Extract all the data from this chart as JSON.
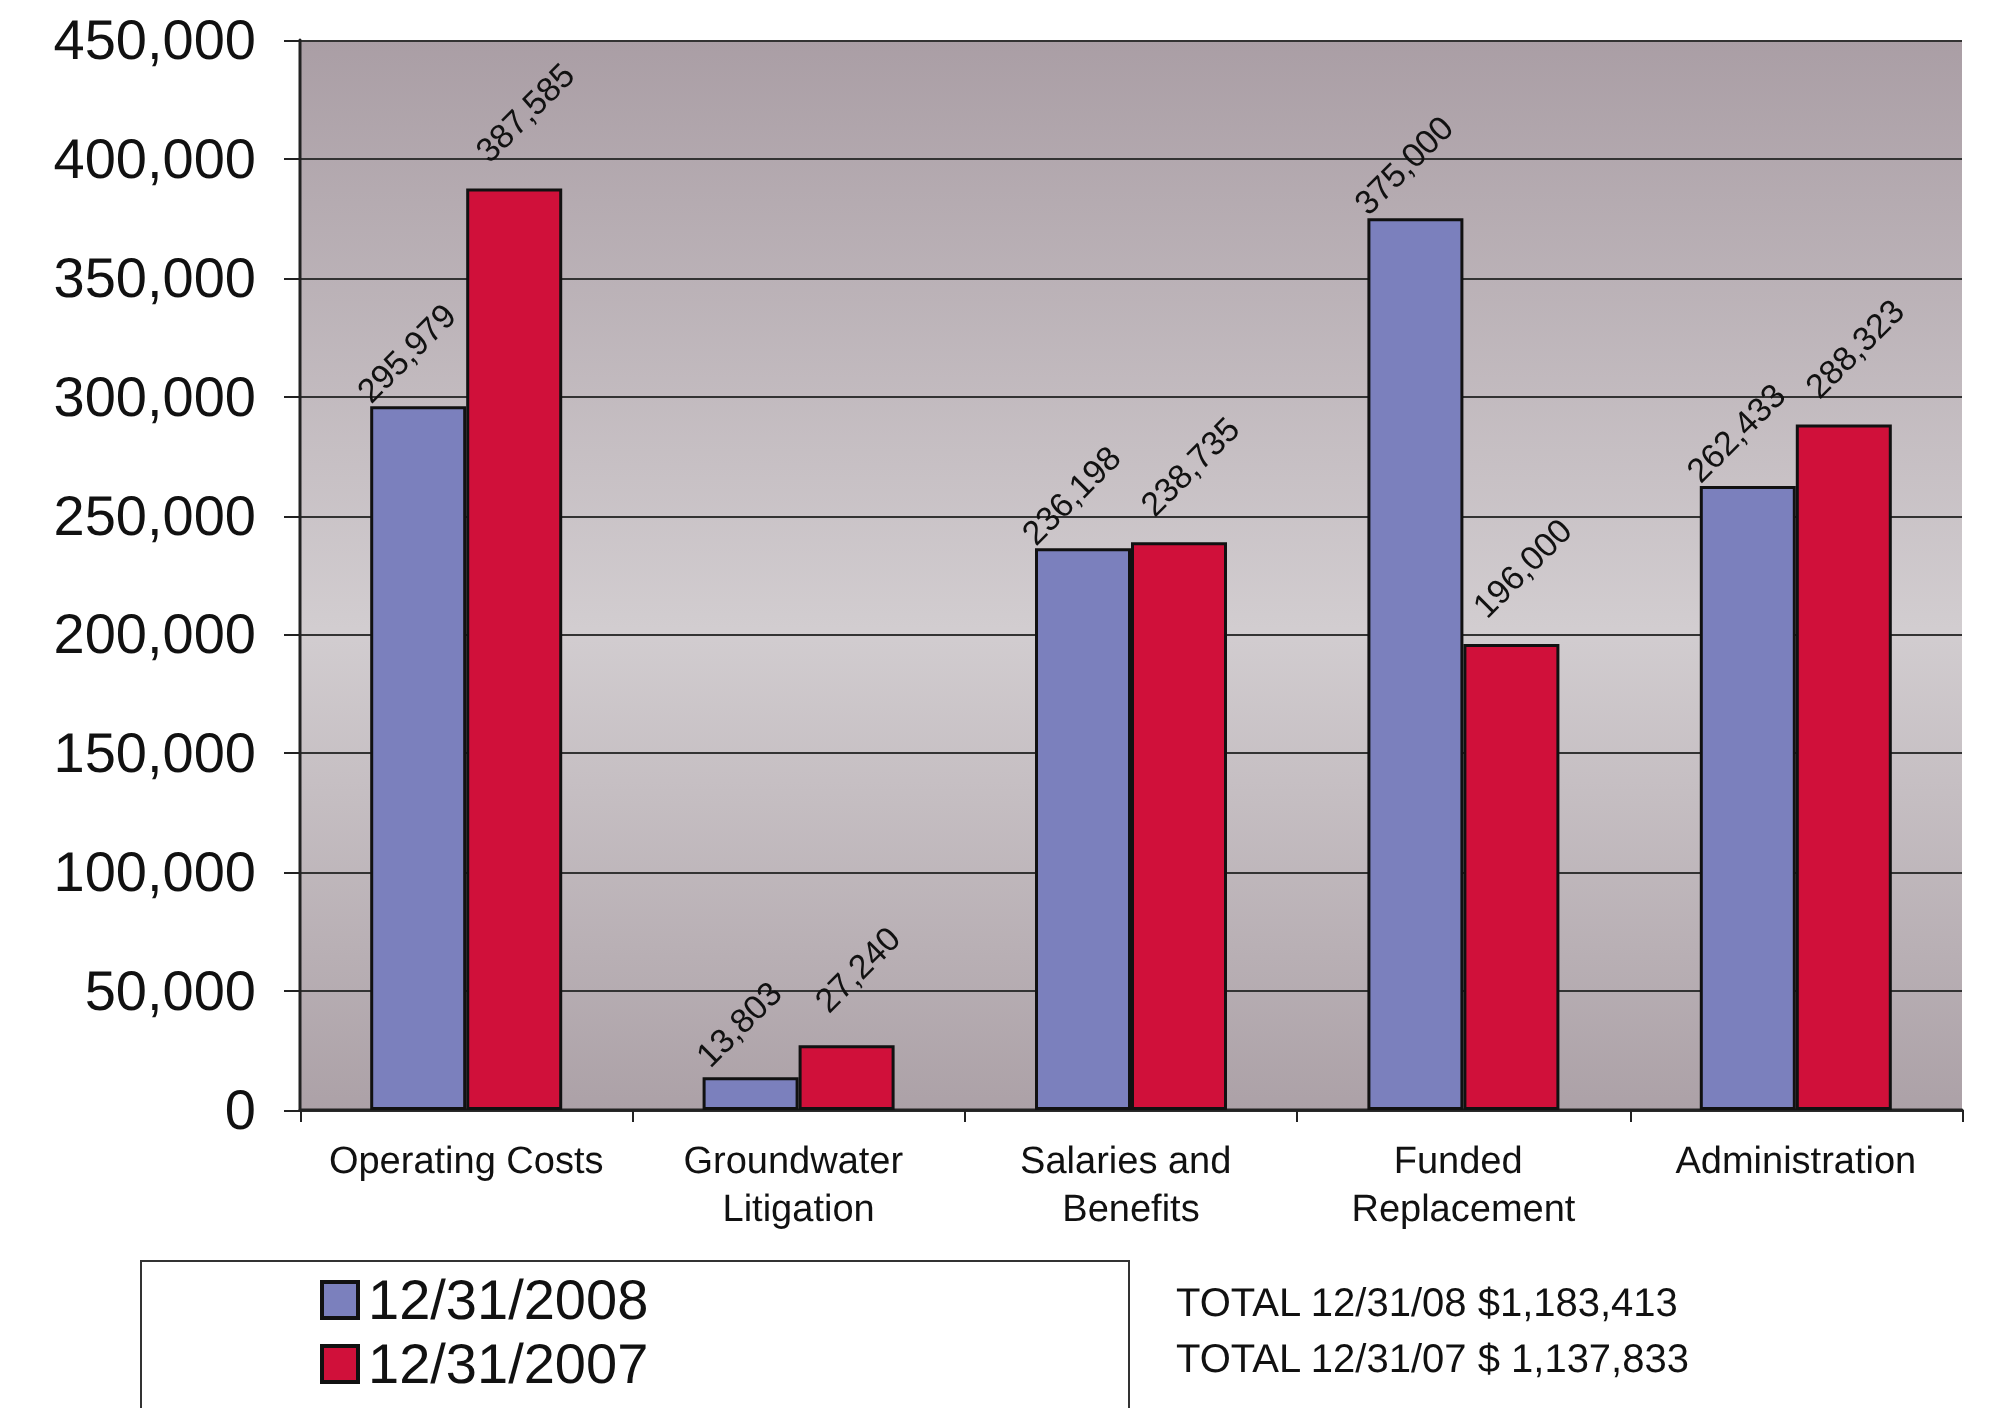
{
  "chart_data": {
    "type": "bar",
    "categories": [
      "Operating Costs",
      "Groundwater Litigation",
      "Salaries and Benefits",
      "Funded Replacement",
      "Administration"
    ],
    "series": [
      {
        "name": "12/31/2008",
        "color": "#7b80bd",
        "values": [
          295979,
          13803,
          236198,
          375000,
          262433
        ],
        "value_labels": [
          "295,979",
          "13,803",
          "236,198",
          "375,000",
          "262,433"
        ]
      },
      {
        "name": "12/31/2007",
        "color": "#d0103a",
        "values": [
          387585,
          27240,
          238735,
          196000,
          288323
        ],
        "value_labels": [
          "387,585",
          "27,240",
          "238,735",
          "196,000",
          "288,323"
        ]
      }
    ],
    "ylim": [
      0,
      450000
    ],
    "yticks": [
      0,
      {
        "value": 50000,
        "label": "50,000"
      },
      {
        "value": 100000,
        "label": "100,000"
      },
      {
        "value": 150000,
        "label": "150,000"
      },
      {
        "value": 200000,
        "label": "200,000"
      },
      {
        "value": 250000,
        "label": "250,000"
      },
      {
        "value": 300000,
        "label": "300,000"
      },
      {
        "value": 350000,
        "label": "350,000"
      },
      {
        "value": 400000,
        "label": "400,000"
      },
      {
        "value": 450000,
        "label": "450,000"
      }
    ],
    "grid": "y",
    "legend": "bottom left",
    "annotations": [
      "TOTAL 12/31/08 $1,183,413",
      "TOTAL 12/31/07 $ 1,137,833"
    ]
  }
}
